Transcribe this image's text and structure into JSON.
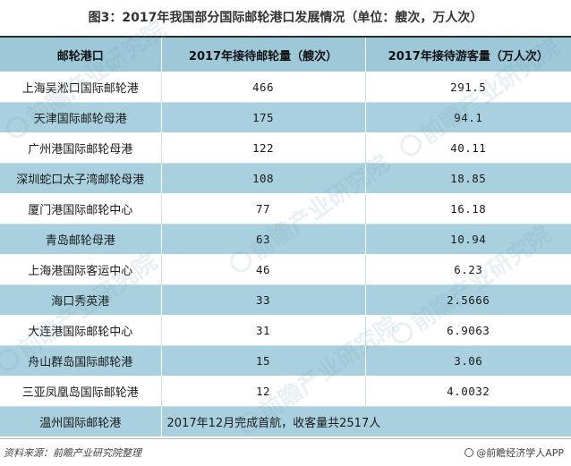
{
  "title": "图3：2017年我国部分国际邮轮港口发展情况（单位：艘次，万人次）",
  "table": {
    "headers": [
      "邮轮港口",
      "2017年接待邮轮量（艘次）",
      "2017年接待游客量（万人次）"
    ],
    "rows": [
      {
        "port": "上海吴淞口国际邮轮港",
        "ships": "466",
        "visitors": "291.5"
      },
      {
        "port": "天津国际邮轮母港",
        "ships": "175",
        "visitors": "94.1"
      },
      {
        "port": "广州港国际邮轮母港",
        "ships": "122",
        "visitors": "40.11"
      },
      {
        "port": "深圳蛇口太子湾邮轮母港",
        "ships": "108",
        "visitors": "18.85"
      },
      {
        "port": "厦门港国际邮轮中心",
        "ships": "77",
        "visitors": "16.18"
      },
      {
        "port": "青岛邮轮母港",
        "ships": "63",
        "visitors": "10.94"
      },
      {
        "port": "上海港国际客运中心",
        "ships": "46",
        "visitors": "6.23"
      },
      {
        "port": "海口秀英港",
        "ships": "33",
        "visitors": "2.5666"
      },
      {
        "port": "大连港国际邮轮中心",
        "ships": "31",
        "visitors": "6.9063"
      },
      {
        "port": "舟山群岛国际邮轮港",
        "ships": "15",
        "visitors": "3.06"
      },
      {
        "port": "三亚凤凰岛国际邮轮港",
        "ships": "12",
        "visitors": "4.0032"
      }
    ],
    "last_row": {
      "port": "温州国际邮轮港",
      "note": "2017年12月完成首航，收客量共2517人"
    }
  },
  "footer": {
    "source": "资料来源：前瞻产业研究院整理",
    "brand": "@前瞻经济学人APP",
    "brand_icon": "circle-logo-icon"
  },
  "watermark": {
    "text": "前瞻产业研究院"
  },
  "colors": {
    "header_bg": "#9cc8d8",
    "stripe_bg": "#a9d0de",
    "title_text": "#333333"
  }
}
